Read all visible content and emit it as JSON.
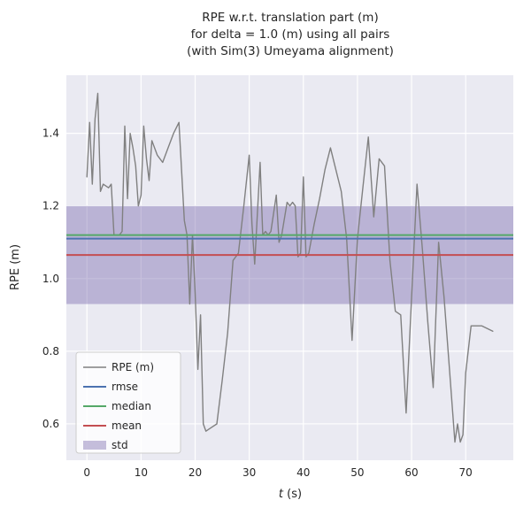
{
  "chart_data": {
    "type": "line",
    "title_lines": [
      "RPE w.r.t. translation part (m)",
      "for delta = 1.0 (m) using all pairs",
      "(with Sim(3) Umeyama alignment)"
    ],
    "xlabel": "t (s)",
    "xlabel_var": "t",
    "xlabel_unit": " (s)",
    "ylabel": "RPE (m)",
    "xlim": [
      -3.8,
      78.8
    ],
    "ylim": [
      0.5,
      1.56
    ],
    "xticks": [
      0,
      10,
      20,
      30,
      40,
      50,
      60,
      70
    ],
    "yticks": [
      0.6,
      0.8,
      1.0,
      1.2,
      1.4
    ],
    "grid": true,
    "legend_position": "lower left",
    "colors": {
      "plot_bg": "#eaeaf2",
      "grid": "#ffffff",
      "text": "#262626"
    },
    "series": [
      {
        "name": "RPE (m)",
        "type": "line",
        "color": "#808080",
        "x": [
          0,
          0.5,
          1,
          1.5,
          2,
          2.5,
          3,
          4,
          4.5,
          5,
          6,
          6.5,
          7,
          7.5,
          8,
          8.5,
          9,
          9.5,
          10,
          10.5,
          11,
          11.5,
          12,
          13,
          14,
          15,
          16,
          17,
          18,
          18.5,
          19,
          19.5,
          20,
          20.5,
          21,
          21.5,
          22,
          23,
          24,
          25,
          26,
          27,
          28,
          29,
          30,
          30.5,
          31,
          32,
          32.5,
          33,
          33.5,
          34,
          35,
          35.5,
          36,
          37,
          37.5,
          38,
          38.5,
          39,
          39.5,
          40,
          40.5,
          41,
          42,
          43,
          44,
          45,
          46,
          47,
          48,
          49,
          50,
          51,
          52,
          53,
          54,
          55,
          56,
          57,
          58,
          59,
          60,
          61,
          62,
          63,
          64,
          65,
          66,
          67,
          68,
          68.5,
          69,
          69.5,
          70,
          71,
          73,
          75
        ],
        "y": [
          1.28,
          1.43,
          1.26,
          1.44,
          1.51,
          1.24,
          1.26,
          1.25,
          1.26,
          1.12,
          1.12,
          1.13,
          1.42,
          1.22,
          1.4,
          1.36,
          1.31,
          1.2,
          1.23,
          1.42,
          1.33,
          1.27,
          1.38,
          1.34,
          1.32,
          1.36,
          1.4,
          1.43,
          1.16,
          1.12,
          0.93,
          1.12,
          0.96,
          0.75,
          0.9,
          0.6,
          0.58,
          0.59,
          0.6,
          0.72,
          0.85,
          1.05,
          1.07,
          1.2,
          1.34,
          1.15,
          1.04,
          1.32,
          1.12,
          1.13,
          1.12,
          1.13,
          1.23,
          1.1,
          1.12,
          1.21,
          1.2,
          1.21,
          1.2,
          1.06,
          1.07,
          1.28,
          1.06,
          1.07,
          1.15,
          1.22,
          1.3,
          1.36,
          1.3,
          1.24,
          1.11,
          0.83,
          1.11,
          1.25,
          1.39,
          1.17,
          1.33,
          1.31,
          1.05,
          0.91,
          0.9,
          0.63,
          0.95,
          1.26,
          1.08,
          0.88,
          0.7,
          1.1,
          0.95,
          0.75,
          0.55,
          0.6,
          0.55,
          0.57,
          0.74,
          0.87,
          0.87,
          0.855
        ]
      },
      {
        "name": "rmse",
        "type": "hline",
        "color": "#4c72b0",
        "value": 1.11
      },
      {
        "name": "median",
        "type": "hline",
        "color": "#55a868",
        "value": 1.12
      },
      {
        "name": "mean",
        "type": "hline",
        "color": "#c44e52",
        "value": 1.065
      },
      {
        "name": "std",
        "type": "band",
        "color": "#8172b2",
        "alpha": 0.45,
        "ymin": 0.93,
        "ymax": 1.2
      }
    ]
  }
}
